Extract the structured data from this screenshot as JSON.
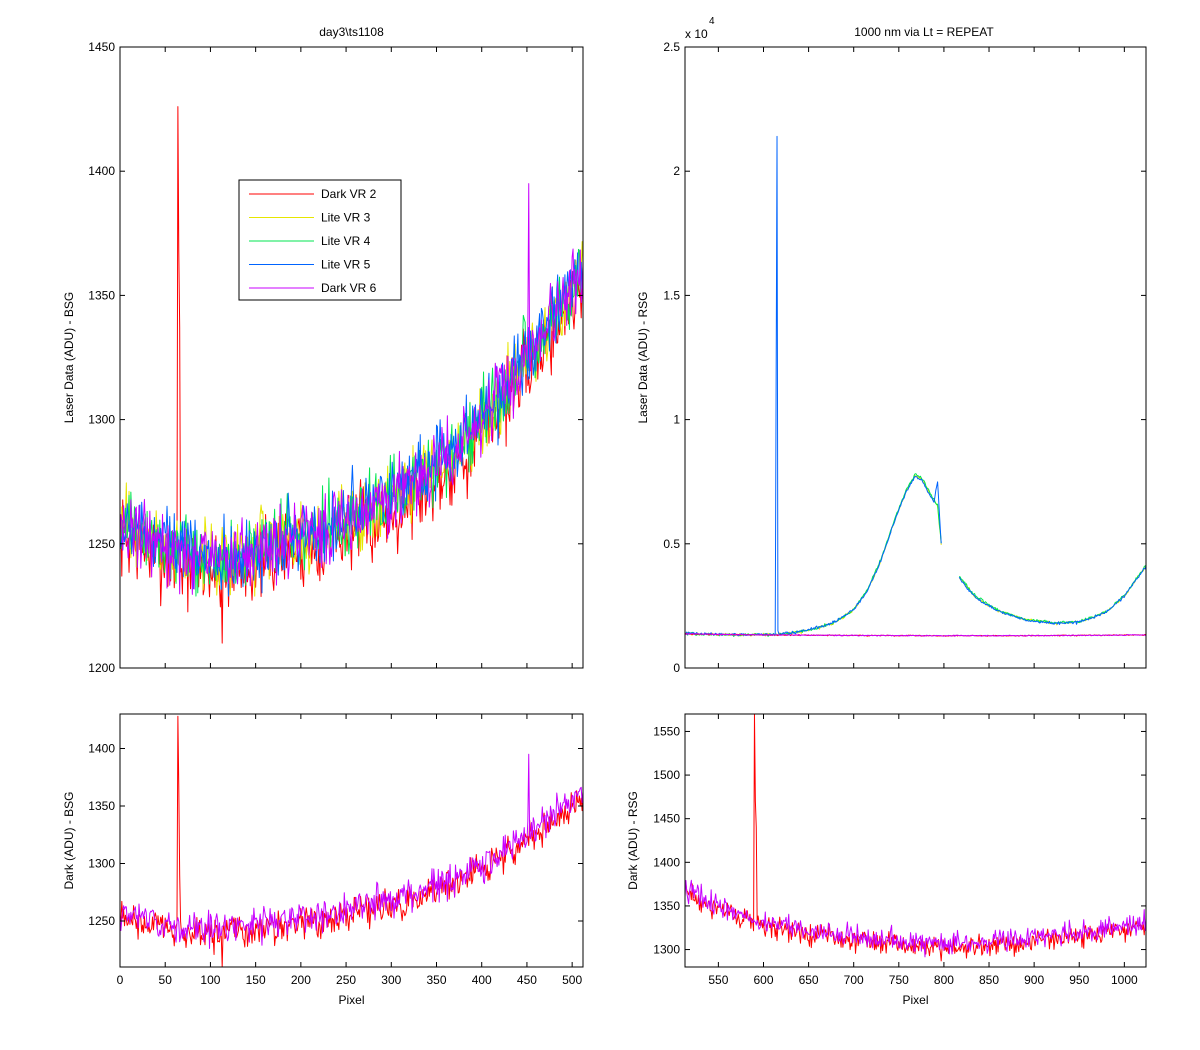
{
  "colors": {
    "dark_vr2": "#ff0000",
    "lite_vr3": "#e6e600",
    "lite_vr4": "#00e650",
    "lite_vr5": "#0064ff",
    "dark_vr6": "#c800ff"
  },
  "chart_data": [
    {
      "id": "tl",
      "type": "line",
      "title": "day3\\ts1108",
      "xlabel": "",
      "ylabel": "Laser Data (ADU) - BSG",
      "xlim": [
        0,
        512
      ],
      "ylim": [
        1200,
        1450
      ],
      "yticks": [
        1200,
        1250,
        1300,
        1350,
        1400,
        1450
      ],
      "xticks": [
        0,
        50,
        100,
        150,
        200,
        250,
        300,
        350,
        400,
        450,
        500
      ],
      "show_xticklabels": false,
      "legend": {
        "placement": "upper-left-inside",
        "entries": [
          {
            "label": "Dark VR 2",
            "color_key": "dark_vr2"
          },
          {
            "label": "Lite VR 3",
            "color_key": "lite_vr3"
          },
          {
            "label": "Lite VR 4",
            "color_key": "lite_vr4"
          },
          {
            "label": "Lite VR 5",
            "color_key": "lite_vr5"
          },
          {
            "label": "Dark VR 6",
            "color_key": "dark_vr6"
          }
        ]
      },
      "series": [
        {
          "name": "Dark VR 2",
          "color_key": "dark_vr2",
          "baseline": [
            [
              0,
              1253
            ],
            [
              60,
              1242
            ],
            [
              110,
              1238
            ],
            [
              200,
              1248
            ],
            [
              300,
              1262
            ],
            [
              380,
              1285
            ],
            [
              450,
              1320
            ],
            [
              512,
              1355
            ]
          ],
          "noise": 11,
          "spikes": [
            [
              64,
              1426
            ],
            [
              65,
              1368
            ],
            [
              66,
              1337
            ],
            [
              113,
              1210
            ]
          ]
        },
        {
          "name": "Lite VR 3",
          "color_key": "lite_vr3",
          "baseline": [
            [
              0,
              1258
            ],
            [
              60,
              1247
            ],
            [
              110,
              1243
            ],
            [
              200,
              1253
            ],
            [
              300,
              1268
            ],
            [
              380,
              1290
            ],
            [
              450,
              1325
            ],
            [
              512,
              1360
            ]
          ],
          "noise": 10,
          "spikes": []
        },
        {
          "name": "Lite VR 4",
          "color_key": "lite_vr4",
          "baseline": [
            [
              0,
              1258
            ],
            [
              60,
              1247
            ],
            [
              110,
              1243
            ],
            [
              200,
              1253
            ],
            [
              300,
              1268
            ],
            [
              380,
              1290
            ],
            [
              450,
              1325
            ],
            [
              512,
              1360
            ]
          ],
          "noise": 10,
          "spikes": []
        },
        {
          "name": "Lite VR 5",
          "color_key": "lite_vr5",
          "baseline": [
            [
              0,
              1259
            ],
            [
              60,
              1248
            ],
            [
              110,
              1244
            ],
            [
              200,
              1254
            ],
            [
              300,
              1269
            ],
            [
              380,
              1291
            ],
            [
              450,
              1326
            ],
            [
              512,
              1361
            ]
          ],
          "noise": 10,
          "spikes": []
        },
        {
          "name": "Dark VR 6",
          "color_key": "dark_vr6",
          "baseline": [
            [
              0,
              1258
            ],
            [
              60,
              1247
            ],
            [
              110,
              1243
            ],
            [
              200,
              1253
            ],
            [
              300,
              1268
            ],
            [
              380,
              1290
            ],
            [
              450,
              1325
            ],
            [
              512,
              1360
            ]
          ],
          "noise": 10,
          "spikes": [
            [
              452,
              1395
            ]
          ]
        }
      ]
    },
    {
      "id": "tr",
      "type": "line",
      "title": "1000 nm via Lt = REPEAT",
      "xlabel": "",
      "ylabel": "Laser Data (ADU) - RSG",
      "exponent_label": "x 10",
      "exponent_power": "4",
      "xlim": [
        513,
        1024
      ],
      "ylim": [
        0,
        25000
      ],
      "yticks": [
        0,
        5000,
        10000,
        15000,
        20000,
        25000
      ],
      "yticklabels": [
        "0",
        "0.5",
        "1",
        "1.5",
        "2",
        "2.5"
      ],
      "xticks": [
        550,
        600,
        650,
        700,
        750,
        800,
        850,
        900,
        950,
        1000
      ],
      "show_xticklabels": false,
      "series": [
        {
          "name": "Lite VR 3",
          "color_key": "lite_vr3",
          "segments": [
            [
              [
                513,
                1380
              ],
              [
                560,
                1330
              ],
              [
                614,
                1350
              ],
              [
                640,
                1450
              ],
              [
                660,
                1620
              ],
              [
                680,
                1850
              ],
              [
                700,
                2350
              ],
              [
                715,
                3100
              ],
              [
                730,
                4300
              ],
              [
                745,
                5900
              ],
              [
                758,
                7100
              ],
              [
                768,
                7750
              ],
              [
                776,
                7600
              ],
              [
                785,
                6950
              ],
              [
                793,
                6500
              ],
              [
                797,
                5000
              ]
            ],
            [
              [
                817,
                3650
              ],
              [
                835,
                2850
              ],
              [
                860,
                2300
              ],
              [
                890,
                1950
              ],
              [
                920,
                1800
              ],
              [
                950,
                1850
              ],
              [
                980,
                2250
              ],
              [
                1000,
                2900
              ],
              [
                1015,
                3650
              ],
              [
                1024,
                4100
              ]
            ]
          ],
          "noise": 40,
          "spikes": []
        },
        {
          "name": "Lite VR 4",
          "color_key": "lite_vr4",
          "segments": [
            [
              [
                513,
                1380
              ],
              [
                560,
                1330
              ],
              [
                614,
                1350
              ],
              [
                640,
                1450
              ],
              [
                660,
                1620
              ],
              [
                680,
                1850
              ],
              [
                700,
                2350
              ],
              [
                715,
                3150
              ],
              [
                730,
                4350
              ],
              [
                745,
                5950
              ],
              [
                758,
                7150
              ],
              [
                768,
                7800
              ],
              [
                776,
                7650
              ],
              [
                785,
                7000
              ],
              [
                793,
                6550
              ],
              [
                797,
                5050
              ]
            ],
            [
              [
                817,
                3700
              ],
              [
                835,
                2880
              ],
              [
                860,
                2320
              ],
              [
                890,
                1970
              ],
              [
                920,
                1820
              ],
              [
                950,
                1870
              ],
              [
                980,
                2270
              ],
              [
                1000,
                2920
              ],
              [
                1015,
                3680
              ],
              [
                1024,
                4130
              ]
            ]
          ],
          "noise": 40,
          "spikes": []
        },
        {
          "name": "Lite VR 5",
          "color_key": "lite_vr5",
          "segments": [
            [
              [
                513,
                1390
              ],
              [
                560,
                1340
              ],
              [
                614,
                1360
              ],
              [
                640,
                1460
              ],
              [
                660,
                1630
              ],
              [
                680,
                1860
              ],
              [
                700,
                2360
              ],
              [
                715,
                3100
              ],
              [
                730,
                4300
              ],
              [
                745,
                5900
              ],
              [
                758,
                7100
              ],
              [
                768,
                7700
              ],
              [
                776,
                7550
              ],
              [
                785,
                6900
              ],
              [
                789,
                6700
              ],
              [
                793,
                7500
              ],
              [
                797,
                5000
              ]
            ],
            [
              [
                817,
                3600
              ],
              [
                835,
                2840
              ],
              [
                860,
                2290
              ],
              [
                890,
                1940
              ],
              [
                920,
                1790
              ],
              [
                950,
                1840
              ],
              [
                980,
                2240
              ],
              [
                1000,
                2890
              ],
              [
                1015,
                3640
              ],
              [
                1024,
                4100
              ]
            ]
          ],
          "noise": 40,
          "spikes": [
            [
              614,
              11400
            ],
            [
              615,
              21400
            ],
            [
              616,
              1500
            ]
          ]
        },
        {
          "name": "Dark VR 2",
          "color_key": "dark_vr2",
          "segments": [
            [
              [
                513,
                1370
              ],
              [
                600,
                1330
              ],
              [
                700,
                1310
              ],
              [
                800,
                1300
              ],
              [
                900,
                1300
              ],
              [
                1024,
                1330
              ]
            ]
          ],
          "noise": 15,
          "spikes": []
        },
        {
          "name": "Dark VR 6",
          "color_key": "dark_vr6",
          "segments": [
            [
              [
                513,
                1375
              ],
              [
                600,
                1332
              ],
              [
                700,
                1312
              ],
              [
                800,
                1302
              ],
              [
                900,
                1302
              ],
              [
                1024,
                1332
              ]
            ]
          ],
          "noise": 15,
          "spikes": []
        }
      ]
    },
    {
      "id": "bl",
      "type": "line",
      "title": "",
      "xlabel": "Pixel",
      "ylabel": "Dark (ADU) - BSG",
      "xlim": [
        0,
        512
      ],
      "ylim": [
        1210,
        1430
      ],
      "yticks": [
        1250,
        1300,
        1350,
        1400
      ],
      "xticks": [
        0,
        50,
        100,
        150,
        200,
        250,
        300,
        350,
        400,
        450,
        500
      ],
      "show_xticklabels": true,
      "series": [
        {
          "name": "Dark VR 2",
          "color_key": "dark_vr2",
          "baseline": [
            [
              0,
              1253
            ],
            [
              60,
              1242
            ],
            [
              110,
              1238
            ],
            [
              200,
              1248
            ],
            [
              300,
              1262
            ],
            [
              380,
              1285
            ],
            [
              450,
              1320
            ],
            [
              512,
              1355
            ]
          ],
          "noise": 10,
          "spikes": [
            [
              64,
              1428
            ],
            [
              65,
              1367
            ],
            [
              66,
              1290
            ],
            [
              113,
              1210
            ]
          ]
        },
        {
          "name": "Dark VR 6",
          "color_key": "dark_vr6",
          "baseline": [
            [
              0,
              1258
            ],
            [
              60,
              1247
            ],
            [
              110,
              1243
            ],
            [
              200,
              1253
            ],
            [
              300,
              1268
            ],
            [
              380,
              1290
            ],
            [
              450,
              1325
            ],
            [
              512,
              1360
            ]
          ],
          "noise": 10,
          "spikes": [
            [
              452,
              1395
            ]
          ]
        }
      ]
    },
    {
      "id": "br",
      "type": "line",
      "title": "",
      "xlabel": "Pixel",
      "ylabel": "Dark (ADU) - RSG",
      "xlim": [
        513,
        1024
      ],
      "ylim": [
        1280,
        1570
      ],
      "yticks": [
        1300,
        1350,
        1400,
        1450,
        1500,
        1550
      ],
      "xticks": [
        550,
        600,
        650,
        700,
        750,
        800,
        850,
        900,
        950,
        1000
      ],
      "show_xticklabels": true,
      "series": [
        {
          "name": "Dark VR 2",
          "color_key": "dark_vr2",
          "baseline": [
            [
              513,
              1368
            ],
            [
              540,
              1350
            ],
            [
              570,
              1337
            ],
            [
              600,
              1328
            ],
            [
              650,
              1318
            ],
            [
              700,
              1312
            ],
            [
              750,
              1305
            ],
            [
              800,
              1303
            ],
            [
              850,
              1305
            ],
            [
              900,
              1310
            ],
            [
              950,
              1315
            ],
            [
              1000,
              1322
            ],
            [
              1024,
              1327
            ]
          ],
          "noise": 9,
          "spikes": [
            [
              590,
              1570
            ],
            [
              591,
              1470
            ],
            [
              592,
              1440
            ]
          ]
        },
        {
          "name": "Dark VR 6",
          "color_key": "dark_vr6",
          "baseline": [
            [
              513,
              1372
            ],
            [
              540,
              1354
            ],
            [
              570,
              1341
            ],
            [
              600,
              1332
            ],
            [
              650,
              1322
            ],
            [
              700,
              1316
            ],
            [
              750,
              1309
            ],
            [
              800,
              1307
            ],
            [
              850,
              1309
            ],
            [
              900,
              1314
            ],
            [
              950,
              1319
            ],
            [
              1000,
              1326
            ],
            [
              1024,
              1331
            ]
          ],
          "noise": 9,
          "spikes": []
        }
      ]
    }
  ]
}
